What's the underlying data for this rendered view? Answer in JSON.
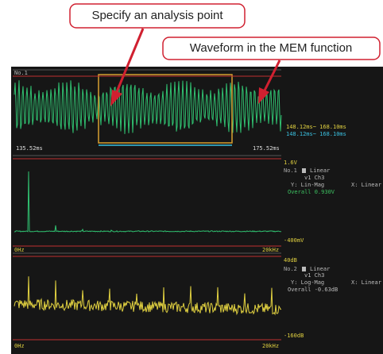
{
  "callouts": [
    "Specify an analysis point",
    "Waveform in the MEM function"
  ],
  "panel1": {
    "label": "No.1",
    "time_start": "135.52ms",
    "time_end": "175.52ms",
    "range_yellow": "148.12ms~ 168.10ms",
    "range_cyan": "148.12ms~ 168.10ms"
  },
  "panel2": {
    "top": "1.6V",
    "bottom": "-400mV",
    "x_start": "0Hz",
    "x_end": "20kHz",
    "no": "No.1",
    "mode": "Linear",
    "channel": "v1 Ch3",
    "y_axis": "Y: Lin-Mag",
    "x_axis": "X: Linear",
    "overall": "Overall 0.930V"
  },
  "panel3": {
    "top": "40dB",
    "bottom": "-160dB",
    "x_start": "0Hz",
    "x_end": "20kHz",
    "no": "No.2",
    "mode": "Linear",
    "channel": "v1 Ch3",
    "y_axis": "Y: Log-Mag",
    "x_axis": "X: Linear",
    "overall": "Overall -0.63dB"
  }
}
